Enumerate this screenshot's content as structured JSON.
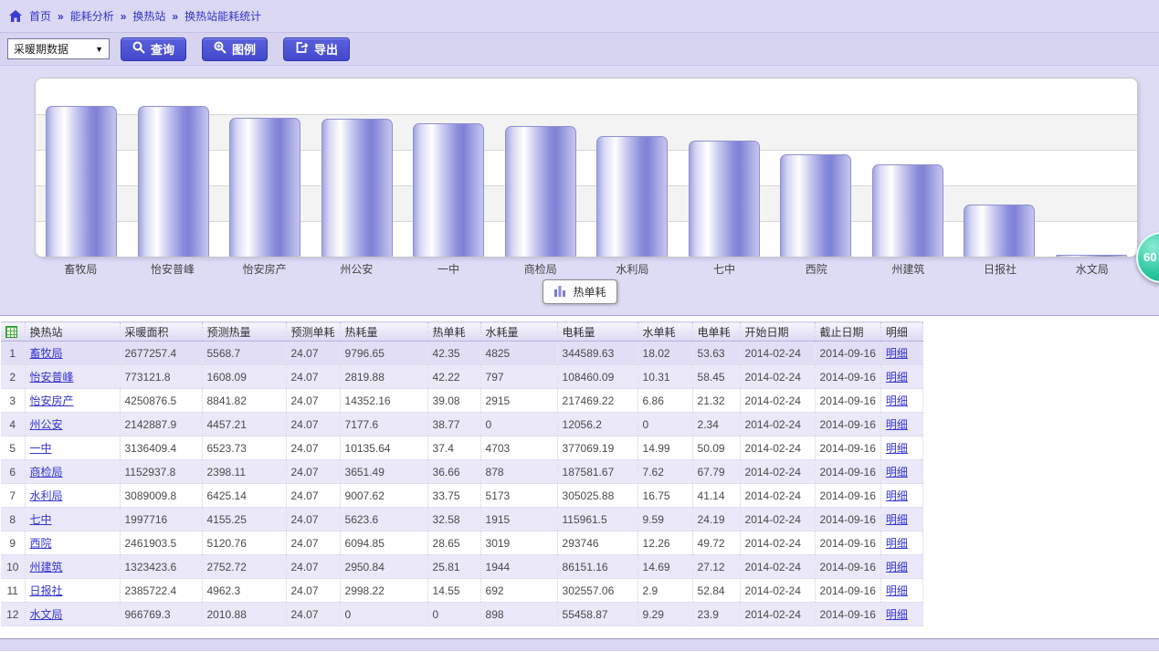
{
  "breadcrumb": {
    "separator": "»",
    "items": [
      "首页",
      "能耗分析",
      "换热站",
      "换热站能耗统计"
    ]
  },
  "toolbar": {
    "period_select_value": "采暖期数据",
    "query_label": "查询",
    "legend_label": "图例",
    "export_label": "导出"
  },
  "chart_data": {
    "type": "bar",
    "title": "",
    "categories": [
      "畜牧局",
      "怡安普峰",
      "怡安房产",
      "州公安",
      "一中",
      "商检局",
      "水利局",
      "七中",
      "西院",
      "州建筑",
      "日报社",
      "水文局"
    ],
    "series": [
      {
        "name": "热单耗",
        "values": [
          42.35,
          42.22,
          39.08,
          38.77,
          37.4,
          36.66,
          33.75,
          32.58,
          28.65,
          25.81,
          14.55,
          0
        ]
      }
    ],
    "xlabel": "",
    "ylabel": "",
    "ylim": [
      0,
      50
    ],
    "yticks": [
      0,
      10,
      20,
      30,
      40,
      50
    ],
    "grid": "horizontal-bands",
    "legend_position": "bottom",
    "bar_color_main": "#8e90d8",
    "bar_color_highlight": "#ffffff"
  },
  "legend": {
    "label": "热单耗"
  },
  "floating_badge": {
    "text": "60",
    "color": "#2cc7a0"
  },
  "table": {
    "columns": [
      "换热站",
      "采暖面积",
      "预测热量",
      "预测单耗",
      "热耗量",
      "热单耗",
      "水耗量",
      "电耗量",
      "水单耗",
      "电单耗",
      "开始日期",
      "截止日期",
      "明细"
    ],
    "detail_label": "明细",
    "rows": [
      {
        "num": "1",
        "station": "畜牧局",
        "cells": [
          "2677257.4",
          "5568.7",
          "24.07",
          "9796.65",
          "42.35",
          "4825",
          "344589.63",
          "18.02",
          "53.63",
          "2014-02-24",
          "2014-09-16"
        ]
      },
      {
        "num": "2",
        "station": "怡安普峰",
        "cells": [
          "773121.8",
          "1608.09",
          "24.07",
          "2819.88",
          "42.22",
          "797",
          "108460.09",
          "10.31",
          "58.45",
          "2014-02-24",
          "2014-09-16"
        ]
      },
      {
        "num": "3",
        "station": "怡安房产",
        "cells": [
          "4250876.5",
          "8841.82",
          "24.07",
          "14352.16",
          "39.08",
          "2915",
          "217469.22",
          "6.86",
          "21.32",
          "2014-02-24",
          "2014-09-16"
        ]
      },
      {
        "num": "4",
        "station": "州公安",
        "cells": [
          "2142887.9",
          "4457.21",
          "24.07",
          "7177.6",
          "38.77",
          "0",
          "12056.2",
          "0",
          "2.34",
          "2014-02-24",
          "2014-09-16"
        ]
      },
      {
        "num": "5",
        "station": "一中",
        "cells": [
          "3136409.4",
          "6523.73",
          "24.07",
          "10135.64",
          "37.4",
          "4703",
          "377069.19",
          "14.99",
          "50.09",
          "2014-02-24",
          "2014-09-16"
        ]
      },
      {
        "num": "6",
        "station": "商检局",
        "cells": [
          "1152937.8",
          "2398.11",
          "24.07",
          "3651.49",
          "36.66",
          "878",
          "187581.67",
          "7.62",
          "67.79",
          "2014-02-24",
          "2014-09-16"
        ]
      },
      {
        "num": "7",
        "station": "水利局",
        "cells": [
          "3089009.8",
          "6425.14",
          "24.07",
          "9007.62",
          "33.75",
          "5173",
          "305025.88",
          "16.75",
          "41.14",
          "2014-02-24",
          "2014-09-16"
        ]
      },
      {
        "num": "8",
        "station": "七中",
        "cells": [
          "1997716",
          "4155.25",
          "24.07",
          "5623.6",
          "32.58",
          "1915",
          "115961.5",
          "9.59",
          "24.19",
          "2014-02-24",
          "2014-09-16"
        ]
      },
      {
        "num": "9",
        "station": "西院",
        "cells": [
          "2461903.5",
          "5120.76",
          "24.07",
          "6094.85",
          "28.65",
          "3019",
          "293746",
          "12.26",
          "49.72",
          "2014-02-24",
          "2014-09-16"
        ]
      },
      {
        "num": "10",
        "station": "州建筑",
        "cells": [
          "1323423.6",
          "2752.72",
          "24.07",
          "2950.84",
          "25.81",
          "1944",
          "86151.16",
          "14.69",
          "27.12",
          "2014-02-24",
          "2014-09-16"
        ]
      },
      {
        "num": "11",
        "station": "日报社",
        "cells": [
          "2385722.4",
          "4962.3",
          "24.07",
          "2998.22",
          "14.55",
          "692",
          "302557.06",
          "2.9",
          "52.84",
          "2014-02-24",
          "2014-09-16"
        ]
      },
      {
        "num": "12",
        "station": "水文局",
        "cells": [
          "966769.3",
          "2010.88",
          "24.07",
          "0",
          "0",
          "898",
          "55458.87",
          "9.29",
          "23.9",
          "2014-02-24",
          "2014-09-16"
        ]
      }
    ]
  },
  "colors": {
    "accent_button": "#4a50d0",
    "lavender_bg": "#dad8f2",
    "link": "#3434cf",
    "row_stripe": "#eae8f9",
    "badge_green": "#2cc7a0"
  }
}
